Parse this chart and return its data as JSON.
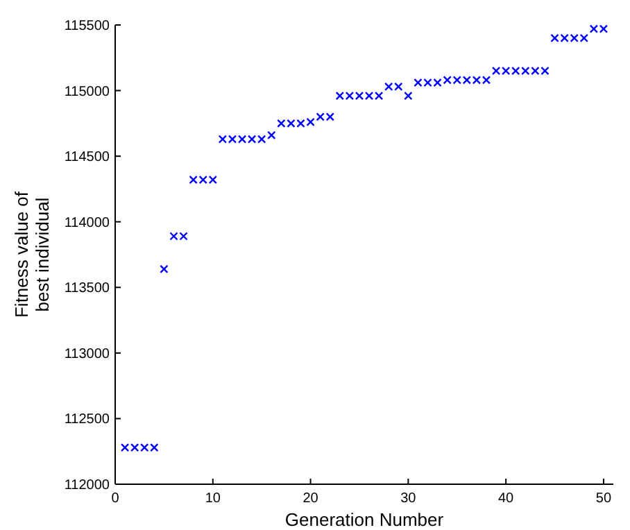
{
  "chart_data": {
    "type": "scatter",
    "xlabel": "Generation Number",
    "ylabel": "Fitness value of best individual",
    "marker": "cross",
    "grid": false,
    "x": [
      1,
      2,
      3,
      4,
      5,
      6,
      7,
      8,
      9,
      10,
      11,
      12,
      13,
      14,
      15,
      16,
      17,
      18,
      19,
      20,
      21,
      22,
      23,
      24,
      25,
      26,
      27,
      28,
      29,
      30,
      31,
      32,
      33,
      34,
      35,
      36,
      37,
      38,
      39,
      40,
      41,
      42,
      43,
      44,
      45,
      46,
      47,
      48,
      49,
      50
    ],
    "series": [
      {
        "color": "#0000ff",
        "values": [
          112280,
          112280,
          112280,
          112280,
          113640,
          113890,
          113890,
          114320,
          114320,
          114320,
          114630,
          114630,
          114630,
          114630,
          114630,
          114660,
          114750,
          114750,
          114750,
          114760,
          114800,
          114800,
          114960,
          114960,
          114960,
          114960,
          114960,
          115030,
          115030,
          114960,
          115060,
          115060,
          115060,
          115080,
          115080,
          115080,
          115080,
          115080,
          115150,
          115150,
          115150,
          115150,
          115150,
          115150,
          115400,
          115400,
          115400,
          115400,
          115470,
          115470
        ]
      }
    ],
    "xlim": [
      0,
      51
    ],
    "xticks": [
      0,
      10,
      20,
      30,
      40,
      50
    ],
    "ylim": [
      112000,
      115500
    ],
    "yticks": [
      112000,
      112500,
      113000,
      113500,
      114000,
      114500,
      115000,
      115500
    ]
  }
}
